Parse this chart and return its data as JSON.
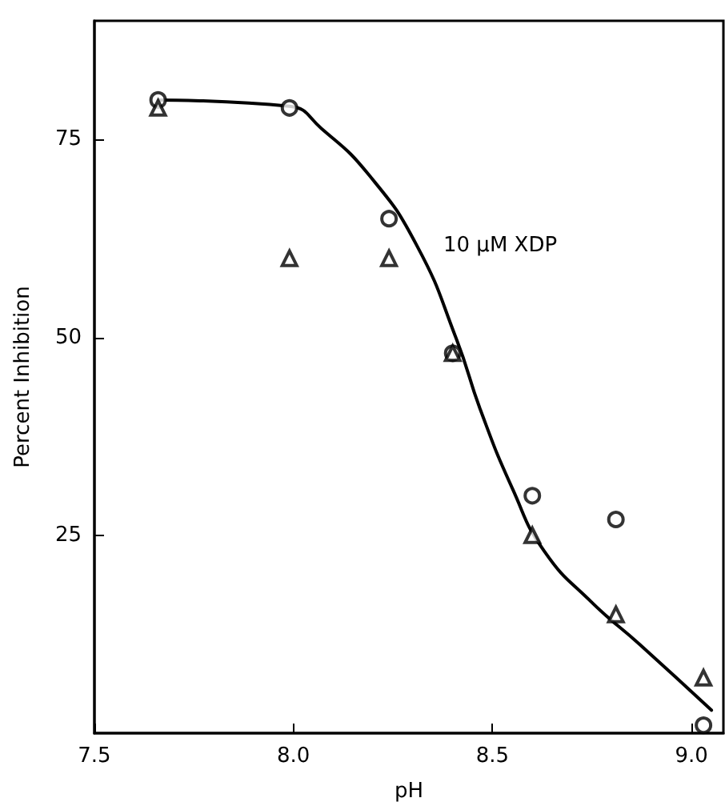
{
  "chart_data": {
    "type": "scatter",
    "xlabel": "pH",
    "ylabel": "Percent Inhibition",
    "annotations": [
      "10 μM XDP"
    ],
    "xlim": [
      7.5,
      9.08
    ],
    "ylim": [
      0,
      90
    ],
    "xticks": [
      {
        "value": 7.5,
        "label": "7.5"
      },
      {
        "value": 8,
        "label": "8.0"
      },
      {
        "value": 8.5,
        "label": "8.5"
      },
      {
        "value": 9,
        "label": "9.0"
      }
    ],
    "yticks": [
      25,
      50,
      75
    ],
    "grid": false,
    "series": [
      {
        "marker": "circle",
        "color": "#000000",
        "x": [
          7.66,
          7.99,
          8.24,
          8.4,
          8.6,
          8.81,
          9.03
        ],
        "values": [
          80,
          79,
          65,
          48,
          30,
          27,
          1
        ]
      },
      {
        "marker": "triangle",
        "color": "#000000",
        "x": [
          7.66,
          7.99,
          8.24,
          8.4,
          8.6,
          8.81,
          9.03
        ],
        "values": [
          79,
          60,
          60,
          48,
          25,
          15,
          7
        ]
      },
      {
        "type": "line",
        "marker": "none",
        "line_style": "solid",
        "color": "#000000",
        "x": [
          7.66,
          7.99,
          8.07,
          8.19,
          8.31,
          8.41,
          8.47,
          8.55,
          8.63,
          8.75,
          8.87,
          9.05
        ],
        "values": [
          80,
          79.2,
          76.4,
          70.5,
          61.6,
          49.7,
          40.8,
          30.9,
          23,
          16.5,
          11.2,
          2.9
        ]
      }
    ]
  }
}
